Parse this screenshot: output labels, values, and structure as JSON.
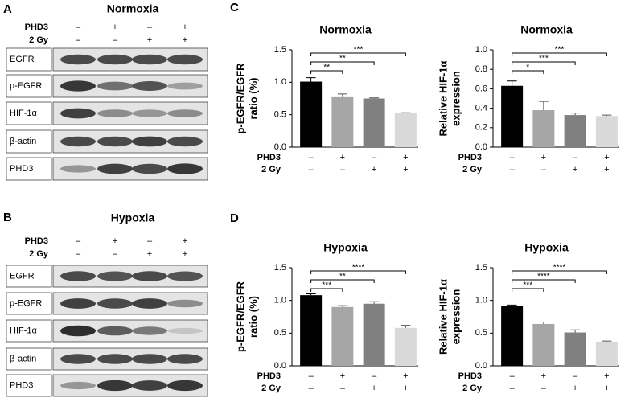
{
  "blots": [
    {
      "label": "A",
      "title": "Normoxia",
      "conditions": [
        {
          "name": "PHD3",
          "values": [
            "–",
            "+",
            "–",
            "+"
          ]
        },
        {
          "name": "2 Gy",
          "values": [
            "–",
            "–",
            "+",
            "+"
          ]
        }
      ],
      "rows": [
        "EGFR",
        "p-EGFR",
        "HIF-1α",
        "β-actin",
        "PHD3"
      ]
    },
    {
      "label": "B",
      "title": "Hypoxia",
      "conditions": [
        {
          "name": "PHD3",
          "values": [
            "–",
            "+",
            "–",
            "+"
          ]
        },
        {
          "name": "2 Gy",
          "values": [
            "–",
            "–",
            "+",
            "+"
          ]
        }
      ],
      "rows": [
        "EGFR",
        "p-EGFR",
        "HIF-1α",
        "β-actin",
        "PHD3"
      ]
    }
  ],
  "panel_labels": [
    "C",
    "D"
  ],
  "chart_data": [
    {
      "type": "bar",
      "title": "Normoxia",
      "ylabel": [
        "p-EGFR/EGFR",
        "ratio (%)"
      ],
      "ylim": [
        0,
        1.5
      ],
      "yticks": [
        {
          "value": 0,
          "label": "0.0"
        },
        {
          "value": 0.5,
          "label": "0.5"
        },
        {
          "value": 1,
          "label": "1.0"
        },
        {
          "value": 1.5,
          "label": "1.5"
        }
      ],
      "values": [
        1.01,
        0.77,
        0.75,
        0.52
      ],
      "errors": [
        0.06,
        0.05,
        0.01,
        0.01
      ],
      "colors": [
        "#000000",
        "#a6a6a6",
        "#808080",
        "#d9d9d9"
      ],
      "conditions": [
        {
          "name": "PHD3",
          "values": [
            "–",
            "+",
            "–",
            "+"
          ]
        },
        {
          "name": "2 Gy",
          "values": [
            "–",
            "–",
            "+",
            "+"
          ]
        }
      ],
      "significance": [
        {
          "pair": [
            0,
            1
          ],
          "label": "**"
        },
        {
          "pair": [
            0,
            2
          ],
          "label": "**"
        },
        {
          "pair": [
            0,
            3
          ],
          "label": "***"
        }
      ]
    },
    {
      "type": "bar",
      "title": "Normoxia",
      "ylabel": [
        "Relative HIF-1α",
        "expression"
      ],
      "ylim": [
        0,
        1
      ],
      "yticks": [
        {
          "value": 0,
          "label": "0.0"
        },
        0.2,
        0.4,
        0.6,
        0.8,
        {
          "value": 1,
          "label": "1.0"
        }
      ],
      "values": [
        0.63,
        0.38,
        0.33,
        0.32
      ],
      "errors": [
        0.05,
        0.09,
        0.02,
        0.01
      ],
      "colors": [
        "#000000",
        "#a6a6a6",
        "#808080",
        "#d9d9d9"
      ],
      "conditions": [
        {
          "name": "PHD3",
          "values": [
            "–",
            "+",
            "–",
            "+"
          ]
        },
        {
          "name": "2  Gy",
          "values": [
            "–",
            "–",
            "+",
            "+"
          ]
        }
      ],
      "significance": [
        {
          "pair": [
            0,
            1
          ],
          "label": "*"
        },
        {
          "pair": [
            0,
            2
          ],
          "label": "***"
        },
        {
          "pair": [
            0,
            3
          ],
          "label": "***"
        }
      ]
    },
    {
      "type": "bar",
      "title": "Hypoxia",
      "ylabel": [
        "p-EGFR/EGFR",
        "ratio (%)"
      ],
      "ylim": [
        0,
        1.5
      ],
      "yticks": [
        {
          "value": 0,
          "label": "0.0"
        },
        {
          "value": 0.5,
          "label": "0.5"
        },
        {
          "value": 1,
          "label": "1.0"
        },
        {
          "value": 1.5,
          "label": "1.5"
        }
      ],
      "values": [
        1.08,
        0.9,
        0.95,
        0.58
      ],
      "errors": [
        0.02,
        0.02,
        0.03,
        0.04
      ],
      "colors": [
        "#000000",
        "#a6a6a6",
        "#808080",
        "#d9d9d9"
      ],
      "conditions": [
        {
          "name": "PHD3",
          "values": [
            "–",
            "+",
            "–",
            "+"
          ]
        },
        {
          "name": "2 Gy",
          "values": [
            "–",
            "–",
            "+",
            "+"
          ]
        }
      ],
      "significance": [
        {
          "pair": [
            0,
            1
          ],
          "label": "***"
        },
        {
          "pair": [
            0,
            2
          ],
          "label": "**"
        },
        {
          "pair": [
            0,
            3
          ],
          "label": "****"
        }
      ]
    },
    {
      "type": "bar",
      "title": "Hypoxia",
      "ylabel": [
        "Relative HIF-1α",
        "expression"
      ],
      "ylim": [
        0,
        1.5
      ],
      "yticks": [
        {
          "value": 0,
          "label": "0.0"
        },
        {
          "value": 0.5,
          "label": "0.5"
        },
        {
          "value": 1,
          "label": "1.0"
        },
        {
          "value": 1.5,
          "label": "1.5"
        }
      ],
      "values": [
        0.92,
        0.64,
        0.51,
        0.37
      ],
      "errors": [
        0.01,
        0.03,
        0.04,
        0.01
      ],
      "colors": [
        "#000000",
        "#a6a6a6",
        "#808080",
        "#d9d9d9"
      ],
      "conditions": [
        {
          "name": "PHD3",
          "values": [
            "–",
            "+",
            "–",
            "+"
          ]
        },
        {
          "name": "2 Gy",
          "values": [
            "–",
            "–",
            "+",
            "+"
          ]
        }
      ],
      "significance": [
        {
          "pair": [
            0,
            1
          ],
          "label": "***"
        },
        {
          "pair": [
            0,
            2
          ],
          "label": "****"
        },
        {
          "pair": [
            0,
            3
          ],
          "label": "****"
        }
      ]
    }
  ]
}
